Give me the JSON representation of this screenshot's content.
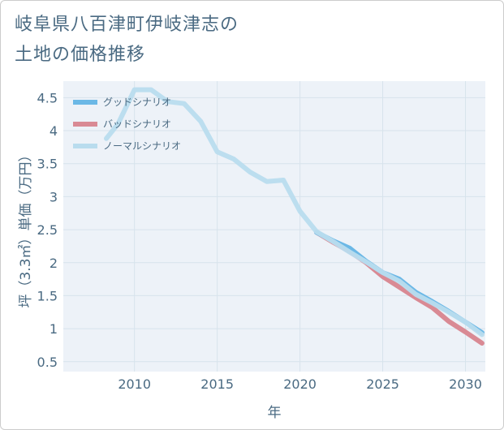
{
  "title_lines": [
    "岐阜県八百津町伊岐津志の",
    "土地の価格推移"
  ],
  "colors": {
    "good": "#6bb8e6",
    "bad": "#d98a94",
    "normal": "#b9dcee",
    "grid": "#d7e3ec",
    "plot_bg": "#edf2f8",
    "text": "#4a6a82"
  },
  "chart_data": {
    "type": "line",
    "xlabel": "年",
    "ylabel": "坪（3.3㎡）単価（万円）",
    "xlim": [
      2005.7,
      2031.2
    ],
    "ylim": [
      0.35,
      4.75
    ],
    "x_ticks": [
      2010,
      2015,
      2020,
      2025,
      2030
    ],
    "x_tick_labels": [
      "2010",
      "2015",
      "2020",
      "2025",
      "2030"
    ],
    "y_ticks": [
      0.5,
      1,
      1.5,
      2,
      2.5,
      3,
      3.5,
      4,
      4.5
    ],
    "y_tick_labels": [
      "0.5",
      "1",
      "1.5",
      "2",
      "2.5",
      "3",
      "3.5",
      "4",
      "4.5"
    ],
    "legend": [
      "グッドシナリオ",
      "バッドシナリオ",
      "ノーマルシナリオ"
    ],
    "series": [
      {
        "name": "グッドシナリオ",
        "color_key": "good",
        "x": [
          2021,
          2022,
          2023,
          2024,
          2025,
          2026,
          2027,
          2028,
          2029,
          2030,
          2031
        ],
        "y": [
          2.46,
          2.33,
          2.22,
          2.02,
          1.85,
          1.75,
          1.55,
          1.41,
          1.26,
          1.1,
          0.94
        ]
      },
      {
        "name": "バッドシナリオ",
        "color_key": "bad",
        "x": [
          2021,
          2022,
          2023,
          2024,
          2025,
          2026,
          2027,
          2028,
          2029,
          2030,
          2031
        ],
        "y": [
          2.46,
          2.31,
          2.17,
          2.0,
          1.79,
          1.63,
          1.47,
          1.32,
          1.11,
          0.95,
          0.78
        ]
      },
      {
        "name": "ノーマルシナリオ",
        "color_key": "normal",
        "x": [
          2008.3,
          2009,
          2010,
          2011,
          2012,
          2013,
          2014,
          2015,
          2016,
          2017,
          2018,
          2019,
          2020,
          2021,
          2022,
          2023,
          2024,
          2025,
          2026,
          2027,
          2028,
          2029,
          2030,
          2031
        ],
        "y": [
          3.88,
          4.1,
          4.62,
          4.62,
          4.44,
          4.41,
          4.14,
          3.68,
          3.57,
          3.37,
          3.23,
          3.25,
          2.78,
          2.47,
          2.32,
          2.16,
          2.01,
          1.85,
          1.72,
          1.52,
          1.39,
          1.25,
          1.1,
          0.91
        ]
      }
    ]
  }
}
